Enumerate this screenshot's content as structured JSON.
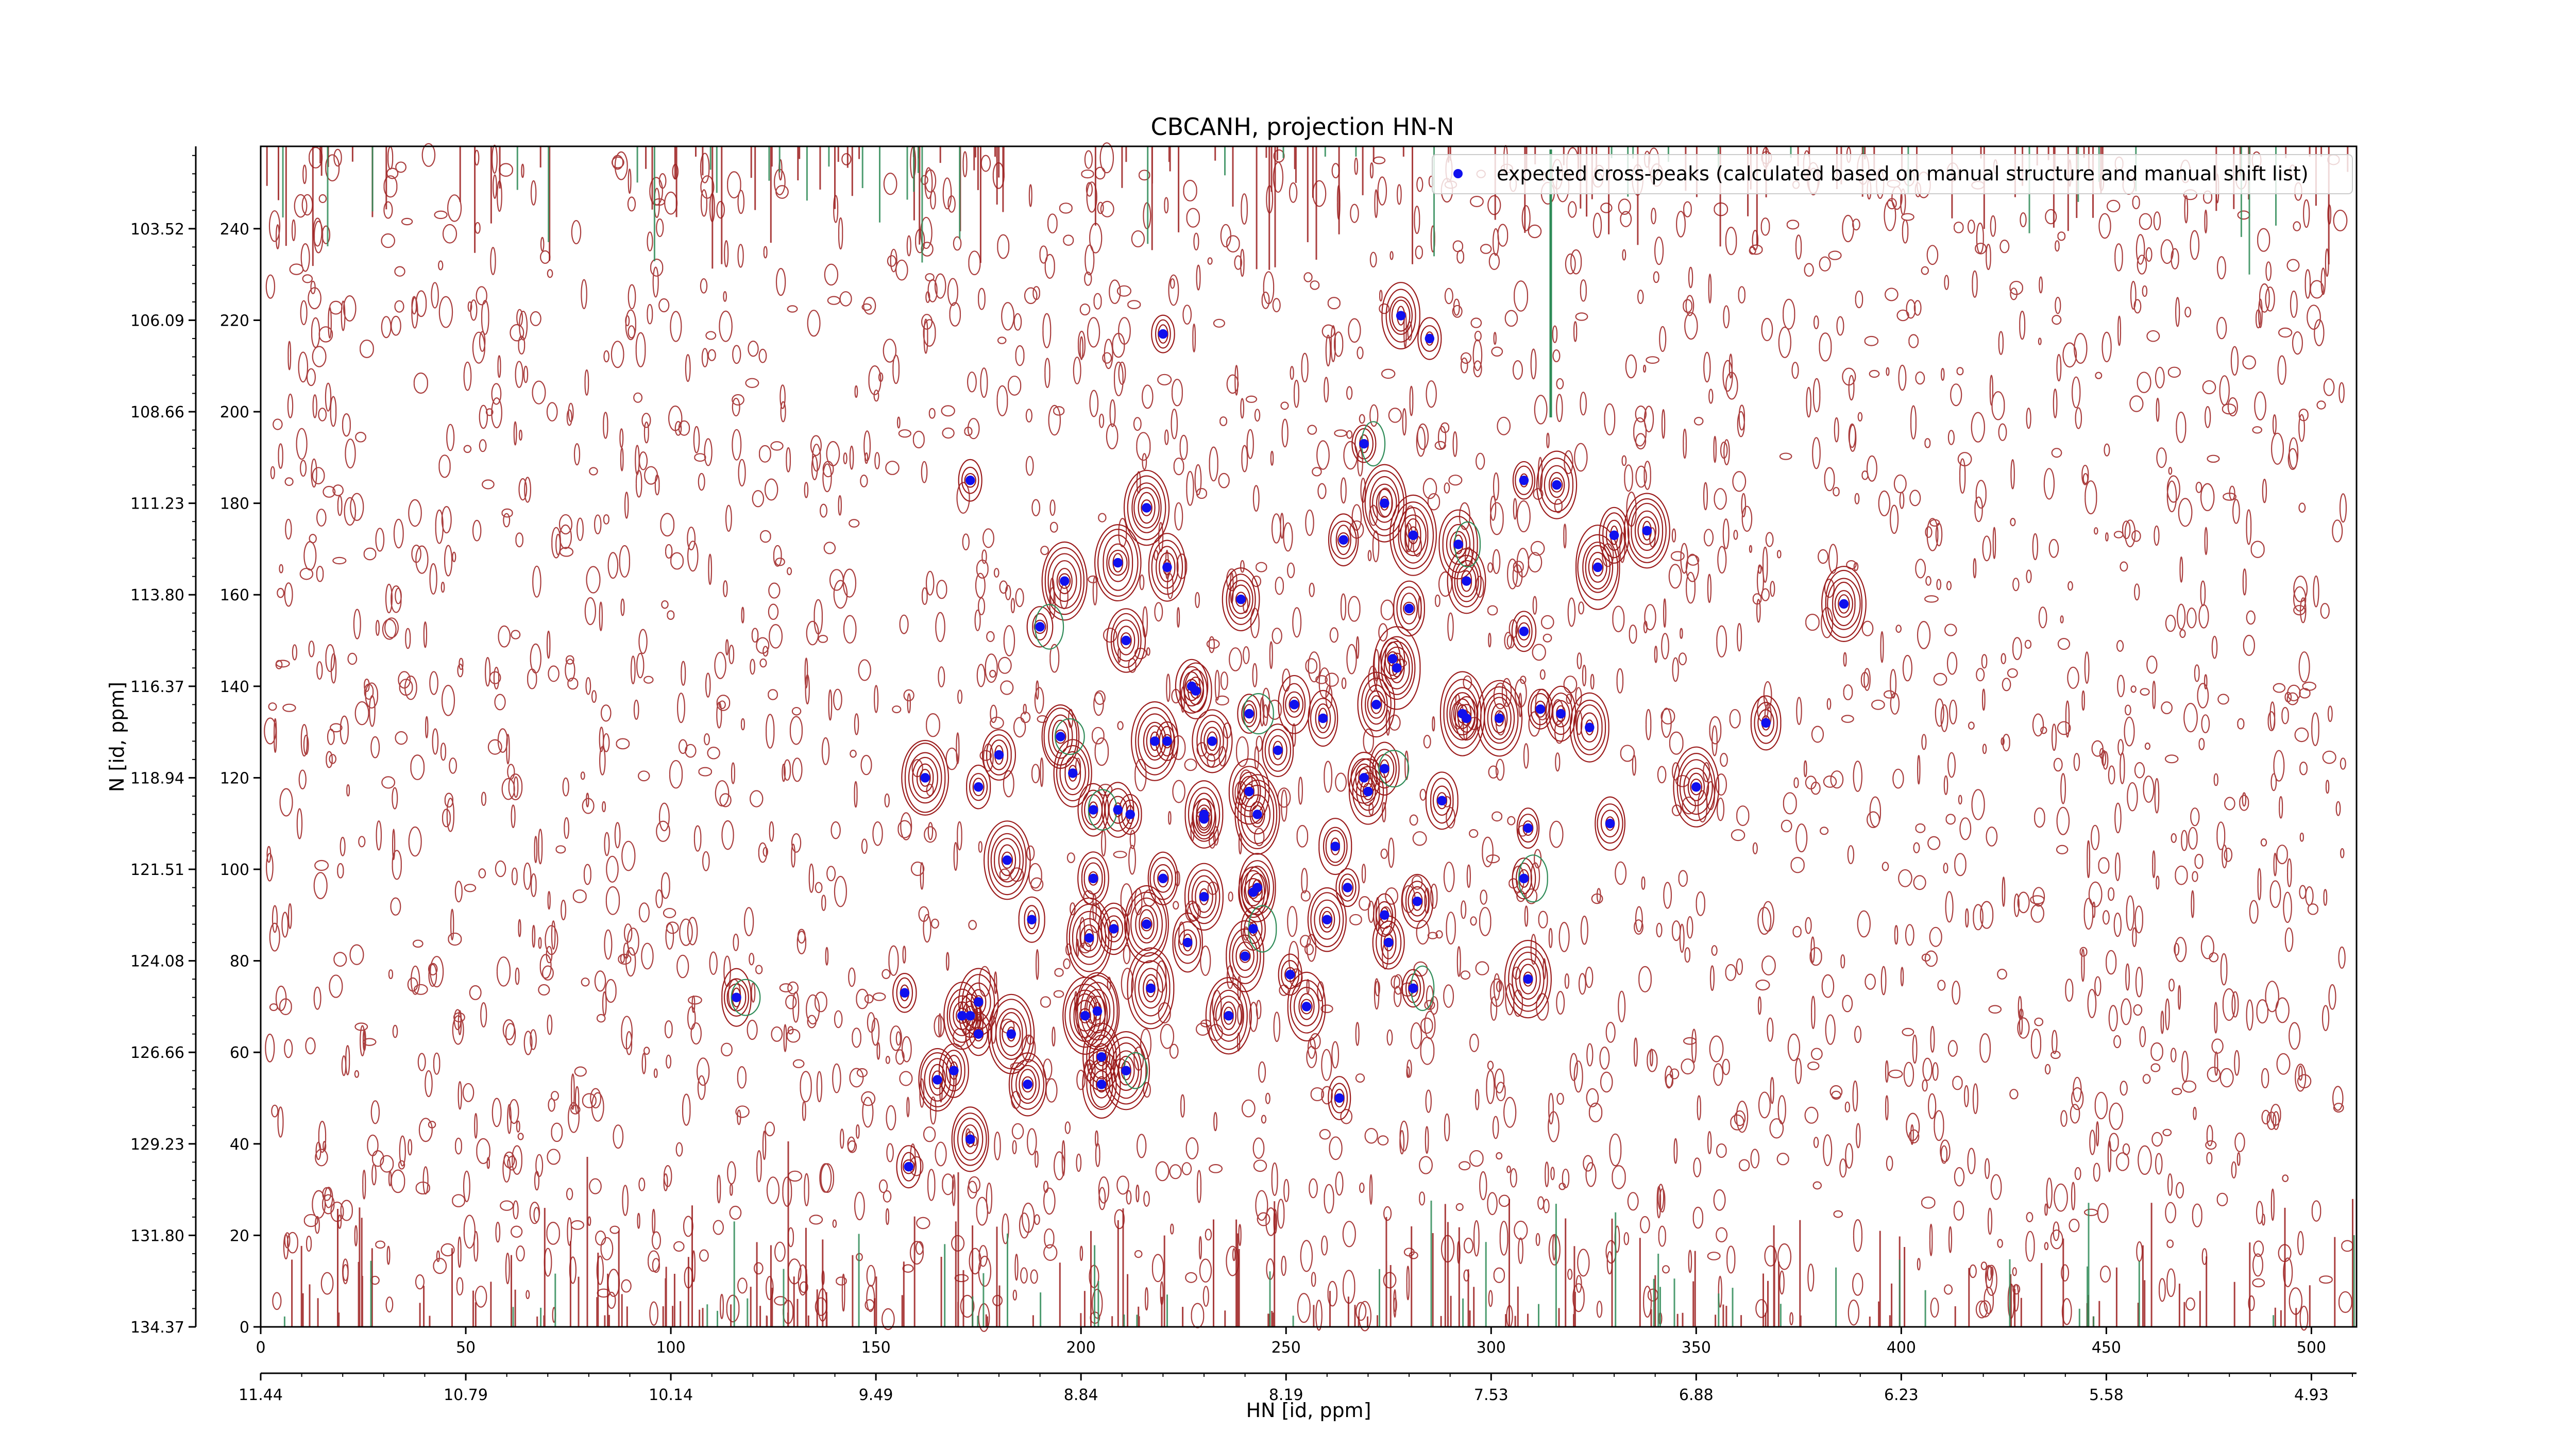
{
  "chart_data": {
    "type": "scatter",
    "title": "CBCANH, projection HN-N",
    "xlabel": "HN [id, ppm]",
    "ylabel": "N [id, ppm]",
    "xlim": [
      0,
      511
    ],
    "ylim": [
      0,
      258
    ],
    "x_ticks": [
      0,
      50,
      100,
      150,
      200,
      250,
      300,
      350,
      400,
      450,
      500
    ],
    "y_ticks": [
      0,
      20,
      40,
      60,
      80,
      100,
      120,
      140,
      160,
      180,
      200,
      220,
      240
    ],
    "x_ppm_ticks": [
      "11.44",
      "10.79",
      "10.14",
      "9.49",
      "8.84",
      "8.19",
      "7.53",
      "6.88",
      "6.23",
      "5.58",
      "4.93"
    ],
    "y_ppm_ticks": [
      "134.37",
      "131.80",
      "129.23",
      "126.66",
      "124.08",
      "121.51",
      "118.94",
      "116.37",
      "113.80",
      "111.23",
      "108.66",
      "106.09",
      "103.52"
    ],
    "legend": {
      "position": "top-right",
      "label": "expected cross-peaks (calculated based on manual structure and manual shift list)"
    },
    "grid": false,
    "colors": {
      "marker": "#1010ee",
      "contour_positive": "#9b1c1c",
      "contour_negative": "#2e8b57"
    },
    "series": [
      {
        "name": "expected cross-peaks (calculated based on manual structure and manual shift list)",
        "points": [
          [
            220,
            217
          ],
          [
            278,
            221
          ],
          [
            285,
            216
          ],
          [
            173,
            185
          ],
          [
            269,
            193
          ],
          [
            216,
            179
          ],
          [
            274,
            180
          ],
          [
            281,
            173
          ],
          [
            308,
            185
          ],
          [
            316,
            184
          ],
          [
            338,
            174
          ],
          [
            330,
            173
          ],
          [
            264,
            172
          ],
          [
            292,
            171
          ],
          [
            326,
            166
          ],
          [
            196,
            163
          ],
          [
            209,
            167
          ],
          [
            221,
            166
          ],
          [
            294,
            163
          ],
          [
            239,
            159
          ],
          [
            280,
            157
          ],
          [
            386,
            158
          ],
          [
            190,
            153
          ],
          [
            211,
            150
          ],
          [
            308,
            152
          ],
          [
            276,
            146
          ],
          [
            277,
            144
          ],
          [
            227,
            140
          ],
          [
            228,
            139
          ],
          [
            272,
            136
          ],
          [
            252,
            136
          ],
          [
            241,
            134
          ],
          [
            259,
            133
          ],
          [
            293,
            134
          ],
          [
            294,
            133
          ],
          [
            302,
            133
          ],
          [
            312,
            135
          ],
          [
            317,
            134
          ],
          [
            324,
            131
          ],
          [
            367,
            132
          ],
          [
            195,
            129
          ],
          [
            218,
            128
          ],
          [
            221,
            128
          ],
          [
            232,
            128
          ],
          [
            248,
            126
          ],
          [
            269,
            120
          ],
          [
            162,
            120
          ],
          [
            180,
            125
          ],
          [
            198,
            121
          ],
          [
            274,
            122
          ],
          [
            270,
            117
          ],
          [
            241,
            117
          ],
          [
            350,
            118
          ],
          [
            175,
            118
          ],
          [
            230,
            112
          ],
          [
            212,
            112
          ],
          [
            243,
            112
          ],
          [
            288,
            115
          ],
          [
            203,
            113
          ],
          [
            209,
            113
          ],
          [
            329,
            110
          ],
          [
            309,
            109
          ],
          [
            182,
            102
          ],
          [
            230,
            111
          ],
          [
            262,
            105
          ],
          [
            203,
            98
          ],
          [
            220,
            98
          ],
          [
            308,
            98
          ],
          [
            230,
            94
          ],
          [
            242,
            95
          ],
          [
            243,
            96
          ],
          [
            265,
            96
          ],
          [
            282,
            93
          ],
          [
            188,
            89
          ],
          [
            260,
            89
          ],
          [
            274,
            90
          ],
          [
            242,
            87
          ],
          [
            208,
            87
          ],
          [
            216,
            88
          ],
          [
            202,
            85
          ],
          [
            226,
            84
          ],
          [
            275,
            84
          ],
          [
            240,
            81
          ],
          [
            251,
            77
          ],
          [
            309,
            76
          ],
          [
            116,
            72
          ],
          [
            157,
            73
          ],
          [
            171,
            68
          ],
          [
            175,
            71
          ],
          [
            201,
            68
          ],
          [
            204,
            69
          ],
          [
            217,
            74
          ],
          [
            236,
            68
          ],
          [
            255,
            70
          ],
          [
            281,
            74
          ],
          [
            175,
            64
          ],
          [
            183,
            64
          ],
          [
            205,
            59
          ],
          [
            173,
            68
          ],
          [
            169,
            56
          ],
          [
            165,
            54
          ],
          [
            187,
            53
          ],
          [
            205,
            53
          ],
          [
            211,
            56
          ],
          [
            263,
            50
          ],
          [
            173,
            41
          ],
          [
            158,
            35
          ]
        ]
      }
    ]
  }
}
